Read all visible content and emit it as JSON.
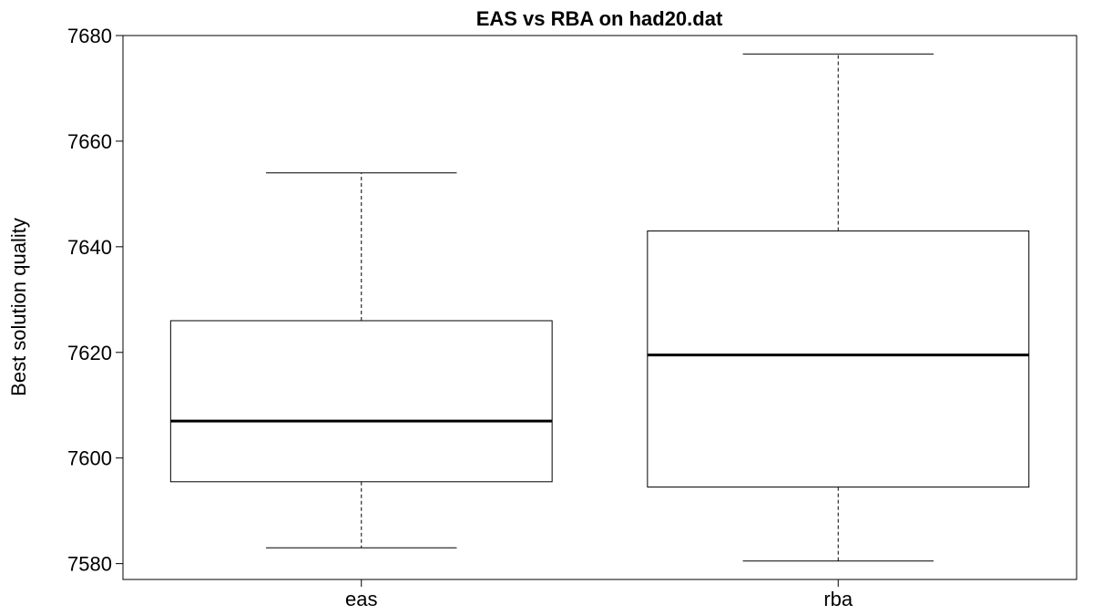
{
  "chart_data": {
    "type": "boxplot",
    "title": "EAS vs RBA on had20.dat",
    "xlabel": "",
    "ylabel": "Best solution quality",
    "ylim": [
      7577,
      7680
    ],
    "yticks": [
      7580,
      7600,
      7620,
      7640,
      7660,
      7680
    ],
    "grid": false,
    "categories": [
      "eas",
      "rba"
    ],
    "boxes": [
      {
        "category": "eas",
        "whisker_low": 7583,
        "q1": 7595.5,
        "median": 7607,
        "q3": 7626,
        "whisker_high": 7654
      },
      {
        "category": "rba",
        "whisker_low": 7580.5,
        "q1": 7594.5,
        "median": 7619.5,
        "q3": 7643,
        "whisker_high": 7676.5
      }
    ]
  }
}
